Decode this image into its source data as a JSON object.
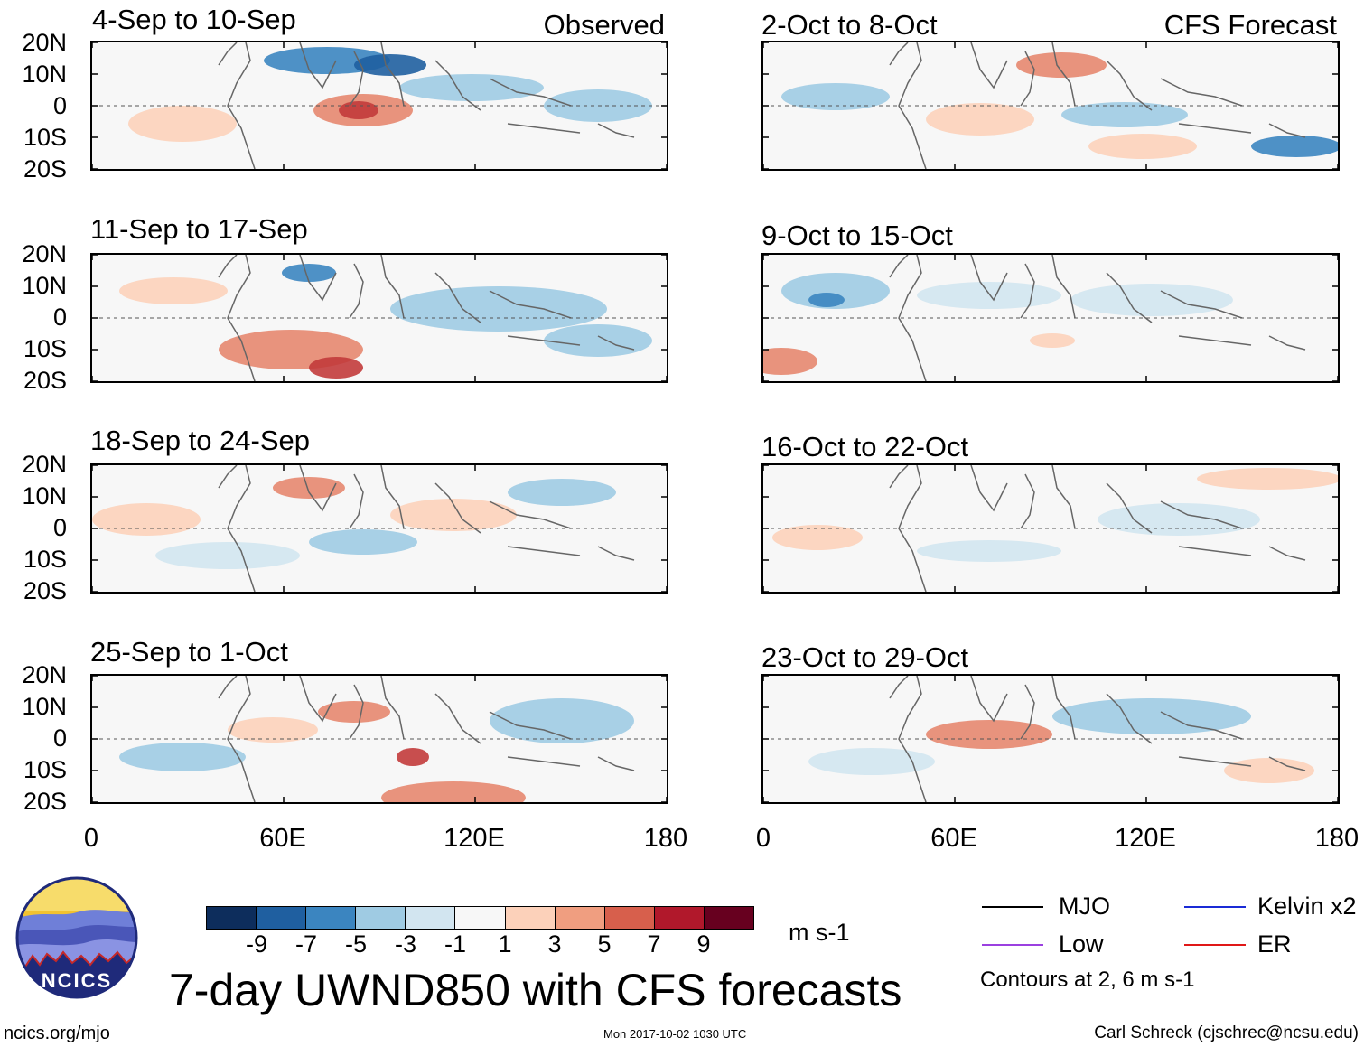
{
  "panels": [
    {
      "id": "p1",
      "title": "4-Sep to 10-Sep",
      "tag": "Observed",
      "blobs": [
        [
          "#3b85c0",
          260,
          20,
          70,
          15
        ],
        [
          "#1f5fa0",
          330,
          25,
          40,
          12
        ],
        [
          "#e6876f",
          300,
          75,
          55,
          18
        ],
        [
          "#c23b3b",
          295,
          75,
          22,
          10
        ],
        [
          "#9fcbe3",
          420,
          50,
          80,
          15
        ],
        [
          "#9fcbe3",
          560,
          70,
          60,
          18
        ],
        [
          "#fcd1ba",
          100,
          90,
          60,
          20
        ]
      ]
    },
    {
      "id": "p2",
      "title": "2-Oct to 8-Oct",
      "tag": "CFS Forecast",
      "blobs": [
        [
          "#e6876f",
          330,
          25,
          50,
          14
        ],
        [
          "#9fcbe3",
          80,
          60,
          60,
          15
        ],
        [
          "#9fcbe3",
          400,
          80,
          70,
          14
        ],
        [
          "#3b85c0",
          590,
          115,
          50,
          12
        ],
        [
          "#fcd1ba",
          240,
          85,
          60,
          18
        ],
        [
          "#fcd1ba",
          420,
          115,
          60,
          14
        ]
      ]
    },
    {
      "id": "p3",
      "title": "11-Sep to 17-Sep",
      "tag": "",
      "blobs": [
        [
          "#3b85c0",
          240,
          20,
          30,
          10
        ],
        [
          "#e6876f",
          220,
          105,
          80,
          22
        ],
        [
          "#c23b3b",
          270,
          125,
          30,
          12
        ],
        [
          "#9fcbe3",
          450,
          60,
          120,
          25
        ],
        [
          "#9fcbe3",
          560,
          95,
          60,
          18
        ],
        [
          "#fcd1ba",
          90,
          40,
          60,
          15
        ]
      ]
    },
    {
      "id": "p4",
      "title": "9-Oct to 15-Oct",
      "tag": "",
      "blobs": [
        [
          "#9fcbe3",
          80,
          40,
          60,
          20
        ],
        [
          "#3b85c0",
          70,
          50,
          20,
          8
        ],
        [
          "#d2e5f0",
          250,
          45,
          80,
          15
        ],
        [
          "#d2e5f0",
          430,
          50,
          90,
          18
        ],
        [
          "#e6876f",
          20,
          118,
          40,
          15
        ],
        [
          "#fcd1ba",
          320,
          95,
          25,
          8
        ]
      ]
    },
    {
      "id": "p5",
      "title": "18-Sep to 24-Sep",
      "tag": "",
      "blobs": [
        [
          "#e6876f",
          240,
          25,
          40,
          12
        ],
        [
          "#fcd1ba",
          400,
          55,
          70,
          18
        ],
        [
          "#9fcbe3",
          520,
          30,
          60,
          15
        ],
        [
          "#9fcbe3",
          300,
          85,
          60,
          14
        ],
        [
          "#fcd1ba",
          60,
          60,
          60,
          18
        ],
        [
          "#d2e5f0",
          150,
          100,
          80,
          15
        ]
      ]
    },
    {
      "id": "p6",
      "title": "16-Oct to 22-Oct",
      "tag": "",
      "blobs": [
        [
          "#fcd1ba",
          560,
          15,
          80,
          12
        ],
        [
          "#d2e5f0",
          460,
          60,
          90,
          18
        ],
        [
          "#d2e5f0",
          250,
          95,
          80,
          12
        ],
        [
          "#fcd1ba",
          60,
          80,
          50,
          14
        ]
      ]
    },
    {
      "id": "p7",
      "title": "25-Sep to 1-Oct",
      "tag": "",
      "blobs": [
        [
          "#e6876f",
          290,
          40,
          40,
          12
        ],
        [
          "#c23b3b",
          355,
          90,
          18,
          10
        ],
        [
          "#e6876f",
          400,
          135,
          80,
          18
        ],
        [
          "#9fcbe3",
          520,
          50,
          80,
          25
        ],
        [
          "#9fcbe3",
          100,
          90,
          70,
          16
        ],
        [
          "#fcd1ba",
          200,
          60,
          50,
          14
        ]
      ]
    },
    {
      "id": "p8",
      "title": "23-Oct to 29-Oct",
      "tag": "",
      "blobs": [
        [
          "#e6876f",
          250,
          65,
          70,
          16
        ],
        [
          "#9fcbe3",
          430,
          45,
          110,
          20
        ],
        [
          "#d2e5f0",
          120,
          95,
          70,
          15
        ],
        [
          "#fcd1ba",
          560,
          105,
          50,
          14
        ]
      ]
    }
  ],
  "lat_labels": [
    "20N",
    "10N",
    "0",
    "10S",
    "20S"
  ],
  "lon_labels": [
    "0",
    "60E",
    "120E",
    "180"
  ],
  "colorbar": {
    "colors": [
      "#0d2d5c",
      "#1f5fa0",
      "#3b85c0",
      "#9fcbe3",
      "#d2e5f0",
      "#f7f7f7",
      "#fcd1ba",
      "#f09e80",
      "#d75f4c",
      "#b1182b",
      "#67001f"
    ],
    "ticks": [
      "-9",
      "-7",
      "-5",
      "-3",
      "-1",
      "1",
      "3",
      "5",
      "7",
      "9"
    ],
    "units": "m s-1"
  },
  "legend": {
    "items": [
      {
        "label": "MJO",
        "color": "#000000"
      },
      {
        "label": "Kelvin x2",
        "color": "#1a2bd6"
      },
      {
        "label": "Low",
        "color": "#9b40e0"
      },
      {
        "label": "ER",
        "color": "#e01818"
      }
    ],
    "note": "Contours at 2, 6 m s-1"
  },
  "main_title": "7-day UWND850 with CFS forecasts",
  "logo_text": "NCICS",
  "footer": {
    "url": "ncics.org/mjo",
    "timestamp": "Mon 2017-10-02 1030 UTC",
    "credit": "Carl Schreck (cjschrec@ncsu.edu)"
  }
}
